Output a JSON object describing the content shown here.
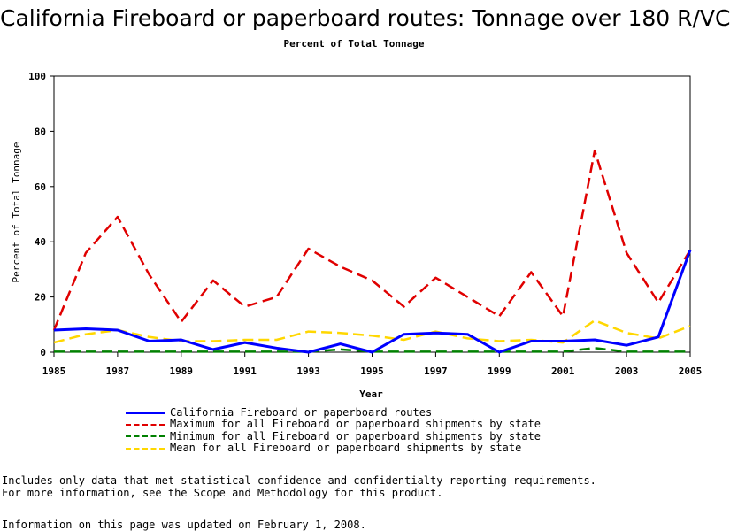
{
  "chart_data": {
    "type": "line",
    "title": "California Fireboard or paperboard routes: Tonnage over 180 R/VC",
    "subtitle": "Percent of Total Tonnage",
    "xlabel": "Year",
    "ylabel": "Percent of Total Tonnage",
    "xlim": [
      1985,
      2005
    ],
    "ylim": [
      0,
      100
    ],
    "x_ticks": [
      1985,
      1987,
      1989,
      1991,
      1993,
      1995,
      1997,
      1999,
      2001,
      2003,
      2005
    ],
    "y_ticks": [
      0,
      20,
      40,
      60,
      80,
      100
    ],
    "grid": false,
    "legend_position": "bottom",
    "x": [
      1985,
      1986,
      1987,
      1988,
      1989,
      1990,
      1991,
      1992,
      1993,
      1994,
      1995,
      1996,
      1997,
      1998,
      1999,
      2000,
      2001,
      2002,
      2003,
      2004,
      2005
    ],
    "series": [
      {
        "name": "California Fireboard or paperboard routes",
        "color": "#0000ff",
        "dash": "solid",
        "values": [
          8,
          8.5,
          8,
          4,
          4.5,
          1,
          3.5,
          1.5,
          0,
          3,
          0,
          6.5,
          7,
          6.5,
          0,
          4,
          4,
          4.5,
          2.5,
          5.5,
          37
        ]
      },
      {
        "name": "Maximum for all Fireboard or paperboard shipments by state",
        "color": "#e00000",
        "dash": "dashed",
        "values": [
          8,
          36,
          49,
          28,
          11,
          26,
          16.5,
          20,
          37.5,
          31,
          26,
          16.5,
          27,
          20,
          13,
          29,
          13,
          73,
          36,
          18,
          37
        ]
      },
      {
        "name": "Minimum for all Fireboard or paperboard shipments by state",
        "color": "#008000",
        "dash": "dashed",
        "values": [
          0.2,
          0.2,
          0.2,
          0.2,
          0.2,
          0.2,
          0.2,
          0.2,
          0.2,
          1,
          0.2,
          0.2,
          0.2,
          0.2,
          0.2,
          0.2,
          0.2,
          1.5,
          0.2,
          0.2,
          0.2
        ]
      },
      {
        "name": "Mean for all Fireboard or paperboard shipments by state",
        "color": "#ffd700",
        "dash": "dashed",
        "values": [
          3.5,
          6.5,
          8,
          5.5,
          4,
          4,
          4.5,
          4.5,
          7.5,
          7,
          6,
          4.5,
          7.5,
          5,
          4,
          4.5,
          3.5,
          11.5,
          7,
          5,
          9.5
        ]
      }
    ]
  },
  "notes": {
    "line1": "Includes only data that met statistical confidence and confidentialty reporting requirements.",
    "line2": "For more information, see the Scope and Methodology for this product.",
    "updated": "Information on this page was updated on February 1, 2008."
  }
}
